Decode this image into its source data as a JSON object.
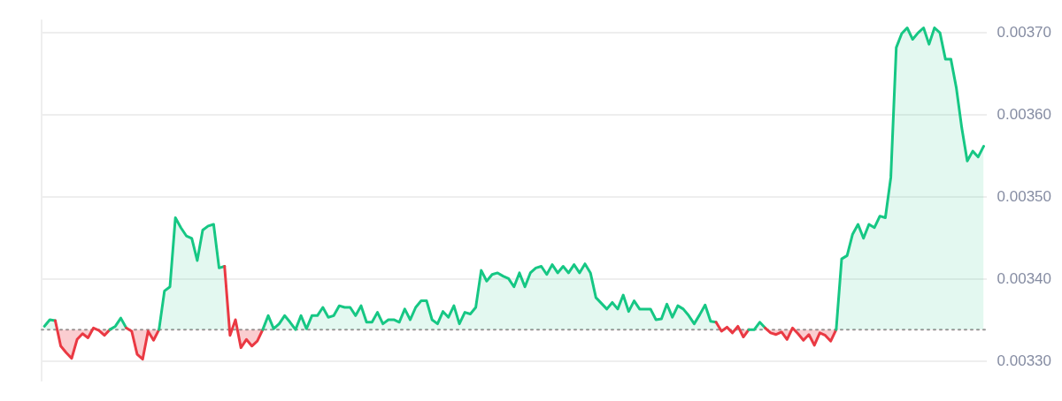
{
  "chart_data": {
    "type": "area",
    "categories": [
      null,
      null,
      null,
      null,
      null,
      null,
      null,
      null,
      null,
      null,
      null,
      null,
      null,
      null,
      null,
      null,
      null,
      null,
      null,
      null,
      null,
      null,
      null,
      null,
      null,
      null,
      null,
      null,
      null,
      null,
      null,
      null,
      null,
      null,
      null,
      null,
      null,
      null,
      null,
      null,
      null,
      null,
      null,
      null,
      null,
      null,
      null,
      null,
      null,
      null,
      null,
      null,
      null,
      null,
      null,
      null,
      null,
      null,
      null,
      null,
      null,
      null,
      null,
      null,
      null,
      null,
      null,
      null,
      null,
      null,
      null,
      null,
      null,
      null,
      null,
      null,
      null,
      null,
      null,
      null,
      null,
      null,
      null,
      null,
      null,
      null,
      null,
      null,
      null,
      null,
      null,
      null,
      null,
      null,
      null,
      null,
      null,
      null,
      null,
      null,
      null,
      null,
      null,
      null,
      null,
      null,
      null,
      null,
      null,
      null,
      null,
      null,
      null,
      null,
      null,
      null,
      null,
      null,
      null,
      null,
      null,
      null,
      null,
      null,
      null,
      null,
      null,
      null,
      null,
      null,
      null,
      null,
      null,
      null,
      null,
      null,
      null,
      null,
      null,
      null,
      null,
      null,
      null,
      null,
      null,
      null,
      null,
      null,
      null,
      null,
      null,
      null,
      null,
      null,
      null,
      null,
      null,
      null,
      null,
      null,
      null,
      null,
      null,
      null,
      null,
      null,
      null,
      null,
      null,
      null,
      null,
      null,
      null
    ],
    "series": [
      {
        "color": "#16c784",
        "values": [
          0.003343,
          0.003351,
          0.00335,
          0.003319,
          0.003311,
          0.003304,
          0.003327,
          0.003334,
          0.003329,
          0.003341,
          0.003338,
          0.003332,
          0.003339,
          0.003343,
          0.003353,
          0.003341,
          0.003337,
          0.003309,
          0.003303,
          0.003337,
          0.003326,
          0.003339,
          0.003386,
          0.003391,
          0.003475,
          0.003463,
          0.003453,
          0.00345,
          0.003423,
          0.00346,
          0.003465,
          0.003467,
          0.003414,
          0.003416,
          0.003332,
          0.003351,
          0.003317,
          0.003327,
          0.003319,
          0.003325,
          0.003339,
          0.003356,
          0.00334,
          0.003346,
          0.003356,
          0.003348,
          0.003339,
          0.003356,
          0.00334,
          0.003356,
          0.003356,
          0.003366,
          0.003354,
          0.003356,
          0.003368,
          0.003366,
          0.003366,
          0.003356,
          0.003368,
          0.003348,
          0.003348,
          0.00336,
          0.003346,
          0.003351,
          0.003351,
          0.003348,
          0.003364,
          0.003351,
          0.003366,
          0.003374,
          0.003374,
          0.003351,
          0.003346,
          0.003361,
          0.003354,
          0.003368,
          0.003346,
          0.00336,
          0.003358,
          0.003366,
          0.003411,
          0.003398,
          0.003406,
          0.003408,
          0.003404,
          0.003401,
          0.003391,
          0.003408,
          0.003391,
          0.003408,
          0.003414,
          0.003416,
          0.003406,
          0.003418,
          0.003408,
          0.003416,
          0.003408,
          0.003418,
          0.003408,
          0.003419,
          0.003408,
          0.003378,
          0.003371,
          0.003364,
          0.003372,
          0.003364,
          0.003381,
          0.003361,
          0.003374,
          0.003364,
          0.003364,
          0.003364,
          0.003351,
          0.003352,
          0.00337,
          0.003354,
          0.003368,
          0.003364,
          0.003356,
          0.003346,
          0.003357,
          0.003369,
          0.003349,
          0.003348,
          0.003337,
          0.003342,
          0.003335,
          0.003343,
          0.00333,
          0.003339,
          0.003339,
          0.003348,
          0.003341,
          0.003335,
          0.003333,
          0.003336,
          0.003327,
          0.003341,
          0.003334,
          0.003326,
          0.003333,
          0.00332,
          0.003335,
          0.003332,
          0.003325,
          0.003339,
          0.003425,
          0.003429,
          0.003455,
          0.003467,
          0.00345,
          0.003467,
          0.003463,
          0.003477,
          0.003475,
          0.003524,
          0.003682,
          0.003699,
          0.003706,
          0.003692,
          0.0037,
          0.003706,
          0.003686,
          0.003706,
          0.0037,
          0.003668,
          0.003668,
          0.003633,
          0.003584,
          0.003544,
          0.003556,
          0.003549,
          0.003562
        ],
        "colors": [
          "#16c784",
          "#16c784",
          "#16c784",
          "#ea3943",
          "#ea3943",
          "#ea3943",
          "#ea3943",
          "#ea3943",
          "#ea3943",
          "#16c784",
          "#ea3943",
          "#ea3943",
          "#16c784",
          "#16c784",
          "#16c784",
          "#16c784",
          "#ea3943",
          "#ea3943",
          "#ea3943",
          "#ea3943",
          "#ea3943",
          "#16c784",
          "#16c784",
          "#16c784",
          "#16c784",
          "#16c784",
          "#16c784",
          "#16c784",
          "#16c784",
          "#16c784",
          "#16c784",
          "#16c784",
          "#16c784",
          "#16c784",
          "#ea3943",
          "#16c784",
          "#ea3943",
          "#ea3943",
          "#ea3943",
          "#ea3943",
          "#16c784",
          "#16c784",
          "#16c784",
          "#16c784",
          "#16c784",
          "#16c784",
          "#16c784",
          "#16c784",
          "#16c784",
          "#16c784",
          "#16c784",
          "#16c784",
          "#16c784",
          "#16c784",
          "#16c784",
          "#16c784",
          "#16c784",
          "#16c784",
          "#16c784",
          "#16c784",
          "#16c784",
          "#16c784",
          "#16c784",
          "#16c784",
          "#16c784",
          "#16c784",
          "#16c784",
          "#16c784",
          "#16c784",
          "#16c784",
          "#16c784",
          "#16c784",
          "#16c784",
          "#16c784",
          "#16c784",
          "#16c784",
          "#16c784",
          "#16c784",
          "#16c784",
          "#16c784",
          "#16c784",
          "#16c784",
          "#16c784",
          "#16c784",
          "#16c784",
          "#16c784",
          "#16c784",
          "#16c784",
          "#16c784",
          "#16c784",
          "#16c784",
          "#16c784",
          "#16c784",
          "#16c784",
          "#16c784",
          "#16c784",
          "#16c784",
          "#16c784",
          "#16c784",
          "#16c784",
          "#16c784",
          "#16c784",
          "#16c784",
          "#16c784",
          "#16c784",
          "#16c784",
          "#16c784",
          "#16c784",
          "#16c784",
          "#16c784",
          "#16c784",
          "#16c784",
          "#16c784",
          "#16c784",
          "#16c784",
          "#16c784",
          "#16c784",
          "#16c784",
          "#16c784",
          "#16c784",
          "#16c784",
          "#16c784",
          "#16c784",
          "#16c784",
          "#ea3943",
          "#16c784",
          "#ea3943",
          "#16c784",
          "#ea3943",
          "#16c784",
          "#16c784",
          "#16c784",
          "#16c784",
          "#ea3943",
          "#ea3943",
          "#ea3943",
          "#ea3943",
          "#16c784",
          "#ea3943",
          "#ea3943",
          "#ea3943",
          "#ea3943",
          "#ea3943",
          "#ea3943",
          "#ea3943",
          "#16c784",
          "#16c784",
          "#16c784",
          "#16c784",
          "#16c784",
          "#16c784",
          "#16c784",
          "#16c784",
          "#16c784",
          "#16c784",
          "#16c784",
          "#16c784",
          "#16c784",
          "#16c784",
          "#16c784",
          "#16c784",
          "#16c784",
          "#16c784",
          "#16c784",
          "#16c784",
          "#16c784",
          "#16c784",
          "#16c784",
          "#16c784",
          "#16c784",
          "#16c784",
          "#16c784",
          "#16c784"
        ]
      }
    ],
    "ylim": [
      0.003276,
      0.003716
    ],
    "yticks": [
      {
        "value": 0.0033,
        "label": "0.00330"
      },
      {
        "value": 0.0034,
        "label": "0.00340"
      },
      {
        "value": 0.0035,
        "label": "0.00350"
      },
      {
        "value": 0.0036,
        "label": "0.00360"
      },
      {
        "value": 0.0037,
        "label": "0.00370"
      }
    ],
    "grid": "y",
    "legend": false,
    "marker": "none",
    "line_style": "solid",
    "ref_lines": [
      {
        "axis": "y",
        "value": 0.003339,
        "color": "#999999",
        "line_style": "dotted"
      }
    ]
  }
}
